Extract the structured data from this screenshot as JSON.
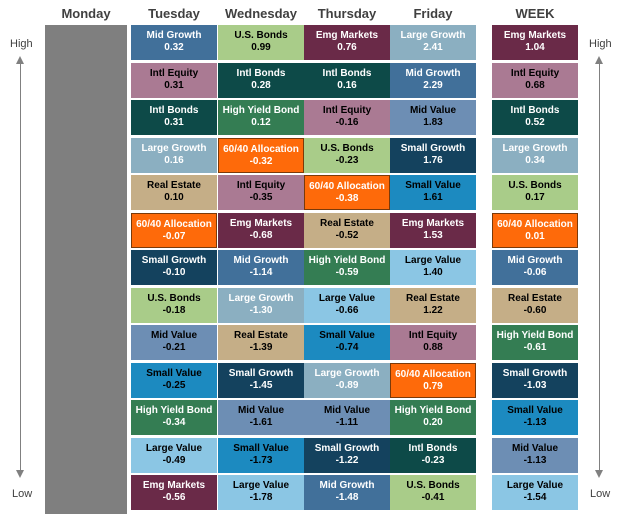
{
  "headers": {
    "monday": "Monday",
    "tuesday": "Tuesday",
    "wednesday": "Wednesday",
    "thursday": "Thursday",
    "friday": "Friday",
    "week": "WEEK"
  },
  "axis": {
    "high_left": "High",
    "low_left": "Low",
    "high_right": "High",
    "low_right": "Low"
  },
  "colors": {
    "Mid Growth": {
      "bg": "#41709a",
      "fg": "#ffffff"
    },
    "Intl Equity": {
      "bg": "#aa7a93",
      "fg": "#000000"
    },
    "Intl Bonds": {
      "bg": "#0d4a48",
      "fg": "#ffffff"
    },
    "Large Growth": {
      "bg": "#8bafc1",
      "fg": "#ffffff"
    },
    "Real Estate": {
      "bg": "#c5ae87",
      "fg": "#000000"
    },
    "60/40 Allocation": {
      "bg": "#fe6a0a",
      "fg": "#ffffff"
    },
    "Small Growth": {
      "bg": "#14425e",
      "fg": "#ffffff"
    },
    "U.S. Bonds": {
      "bg": "#a9cc89",
      "fg": "#000000"
    },
    "Mid Value": {
      "bg": "#6d8eb4",
      "fg": "#000000"
    },
    "Small Value": {
      "bg": "#1c8ac0",
      "fg": "#000000"
    },
    "High Yield Bond": {
      "bg": "#347d53",
      "fg": "#ffffff"
    },
    "Large Value": {
      "bg": "#8bc6e4",
      "fg": "#000000"
    },
    "Emg Markets": {
      "bg": "#6a2a48",
      "fg": "#ffffff"
    }
  },
  "columns": {
    "tuesday": [
      {
        "name": "Mid Growth",
        "value": "0.32"
      },
      {
        "name": "Intl Equity",
        "value": "0.31"
      },
      {
        "name": "Intl Bonds",
        "value": "0.31"
      },
      {
        "name": "Large Growth",
        "value": "0.16"
      },
      {
        "name": "Real Estate",
        "value": "0.10"
      },
      {
        "name": "60/40 Allocation",
        "value": "-0.07"
      },
      {
        "name": "Small Growth",
        "value": "-0.10"
      },
      {
        "name": "U.S. Bonds",
        "value": "-0.18"
      },
      {
        "name": "Mid Value",
        "value": "-0.21"
      },
      {
        "name": "Small Value",
        "value": "-0.25"
      },
      {
        "name": "High Yield Bond",
        "value": "-0.34"
      },
      {
        "name": "Large Value",
        "value": "-0.49"
      },
      {
        "name": "Emg Markets",
        "value": "-0.56"
      }
    ],
    "wednesday": [
      {
        "name": "U.S. Bonds",
        "value": "0.99"
      },
      {
        "name": "Intl Bonds",
        "value": "0.28"
      },
      {
        "name": "High Yield Bond",
        "value": "0.12"
      },
      {
        "name": "60/40 Allocation",
        "value": "-0.32"
      },
      {
        "name": "Intl Equity",
        "value": "-0.35"
      },
      {
        "name": "Emg Markets",
        "value": "-0.68"
      },
      {
        "name": "Mid Growth",
        "value": "-1.14"
      },
      {
        "name": "Large Growth",
        "value": "-1.30"
      },
      {
        "name": "Real Estate",
        "value": "-1.39"
      },
      {
        "name": "Small Growth",
        "value": "-1.45"
      },
      {
        "name": "Mid Value",
        "value": "-1.61"
      },
      {
        "name": "Small Value",
        "value": "-1.73"
      },
      {
        "name": "Large Value",
        "value": "-1.78"
      }
    ],
    "thursday": [
      {
        "name": "Emg Markets",
        "value": "0.76"
      },
      {
        "name": "Intl Bonds",
        "value": "0.16"
      },
      {
        "name": "Intl Equity",
        "value": "-0.16"
      },
      {
        "name": "U.S. Bonds",
        "value": "-0.23"
      },
      {
        "name": "60/40 Allocation",
        "value": "-0.38"
      },
      {
        "name": "Real Estate",
        "value": "-0.52"
      },
      {
        "name": "High Yield Bond",
        "value": "-0.59"
      },
      {
        "name": "Large Value",
        "value": "-0.66"
      },
      {
        "name": "Small Value",
        "value": "-0.74"
      },
      {
        "name": "Large Growth",
        "value": "-0.89"
      },
      {
        "name": "Mid Value",
        "value": "-1.11"
      },
      {
        "name": "Small Growth",
        "value": "-1.22"
      },
      {
        "name": "Mid Growth",
        "value": "-1.48"
      }
    ],
    "friday": [
      {
        "name": "Large Growth",
        "value": "2.41"
      },
      {
        "name": "Mid Growth",
        "value": "2.29"
      },
      {
        "name": "Mid Value",
        "value": "1.83"
      },
      {
        "name": "Small Growth",
        "value": "1.76"
      },
      {
        "name": "Small Value",
        "value": "1.61"
      },
      {
        "name": "Emg Markets",
        "value": "1.53"
      },
      {
        "name": "Large Value",
        "value": "1.40"
      },
      {
        "name": "Real Estate",
        "value": "1.22"
      },
      {
        "name": "Intl Equity",
        "value": "0.88"
      },
      {
        "name": "60/40 Allocation",
        "value": "0.79"
      },
      {
        "name": "High Yield Bond",
        "value": "0.20"
      },
      {
        "name": "Intl Bonds",
        "value": "-0.23"
      },
      {
        "name": "U.S. Bonds",
        "value": "-0.41"
      }
    ],
    "week": [
      {
        "name": "Emg Markets",
        "value": "1.04"
      },
      {
        "name": "Intl Equity",
        "value": "0.68"
      },
      {
        "name": "Intl Bonds",
        "value": "0.52"
      },
      {
        "name": "Large Growth",
        "value": "0.34"
      },
      {
        "name": "U.S. Bonds",
        "value": "0.17"
      },
      {
        "name": "60/40 Allocation",
        "value": "0.01"
      },
      {
        "name": "Mid Growth",
        "value": "-0.06"
      },
      {
        "name": "Real Estate",
        "value": "-0.60"
      },
      {
        "name": "High Yield Bond",
        "value": "-0.61"
      },
      {
        "name": "Small Growth",
        "value": "-1.03"
      },
      {
        "name": "Small Value",
        "value": "-1.13"
      },
      {
        "name": "Mid Value",
        "value": "-1.13"
      },
      {
        "name": "Large Value",
        "value": "-1.54"
      }
    ]
  }
}
